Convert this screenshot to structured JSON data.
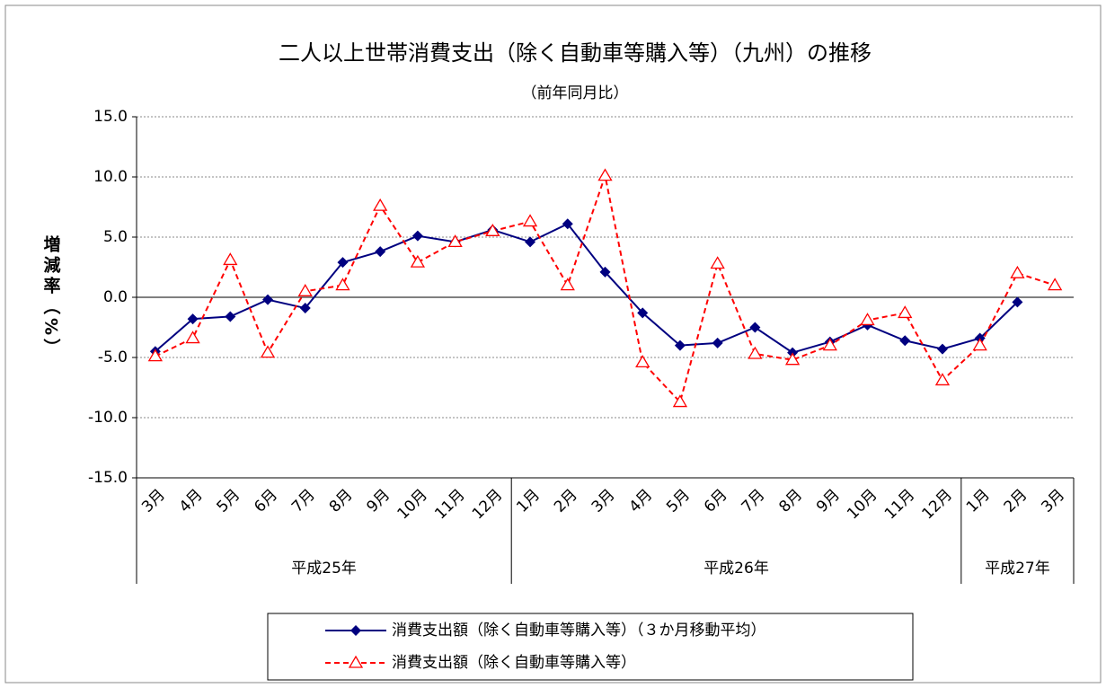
{
  "chart_data": {
    "type": "line",
    "title": "二人以上世帯消費支出（除く自動車等購入等）（九州）の推移",
    "subtitle": "（前年同月比）",
    "y_label": "増減率（%）",
    "groups": [
      {
        "name": "平成25年",
        "months": [
          "3月",
          "4月",
          "5月",
          "6月",
          "7月",
          "8月",
          "9月",
          "10月",
          "11月",
          "12月"
        ]
      },
      {
        "name": "平成26年",
        "months": [
          "1月",
          "2月",
          "3月",
          "4月",
          "5月",
          "6月",
          "7月",
          "8月",
          "9月",
          "10月",
          "11月",
          "12月"
        ]
      },
      {
        "name": "平成27年",
        "months": [
          "1月",
          "2月",
          "3月"
        ]
      }
    ],
    "series": [
      {
        "name": "消費支出額（除く自動車等購入等）（３か月移動平均）",
        "color": "#000080",
        "marker": "diamond",
        "dashed": false,
        "values": [
          -4.5,
          -1.8,
          -1.6,
          -0.2,
          -0.9,
          2.9,
          3.8,
          5.1,
          4.6,
          5.6,
          4.6,
          6.1,
          2.1,
          -1.3,
          -4.0,
          -3.8,
          -2.5,
          -4.6,
          -3.7,
          -2.3,
          -3.6,
          -4.3,
          -3.4,
          -0.4,
          null
        ]
      },
      {
        "name": "消費支出額（除く自動車等購入等）",
        "color": "#ff0000",
        "marker": "triangle",
        "dashed": true,
        "values": [
          -4.9,
          -3.4,
          3.1,
          -4.6,
          0.5,
          1.0,
          7.6,
          2.9,
          4.6,
          5.5,
          6.3,
          1.0,
          10.1,
          -5.4,
          -8.7,
          2.8,
          -4.7,
          -5.2,
          -4.0,
          -1.9,
          -1.3,
          -6.9,
          -4.0,
          2.0,
          1.0
        ]
      }
    ],
    "ylim": [
      -15,
      15
    ],
    "yticks": [
      {
        "value": -15,
        "label": "-15.0"
      },
      {
        "value": -10,
        "label": "-10.0"
      },
      {
        "value": -5,
        "label": "-5.0"
      },
      {
        "value": 0,
        "label": "0.0"
      },
      {
        "value": 5,
        "label": "5.0"
      },
      {
        "value": 10,
        "label": "10.0"
      },
      {
        "value": 15,
        "label": "15.0"
      }
    ],
    "grid": true,
    "legend": "bottom"
  }
}
